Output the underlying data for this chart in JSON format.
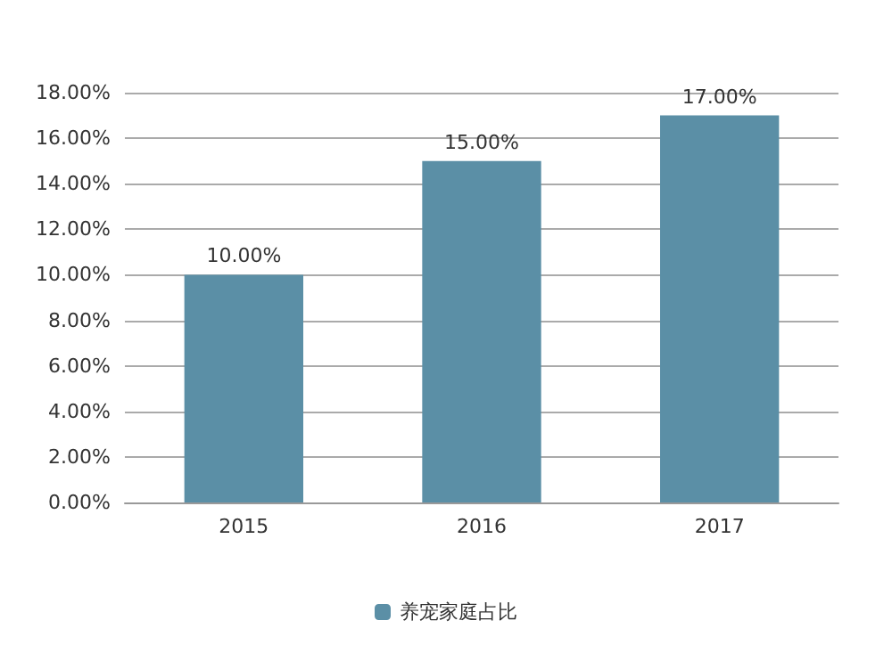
{
  "chart_data": {
    "type": "bar",
    "categories": [
      "2015",
      "2016",
      "2017"
    ],
    "series": [
      {
        "name": "养宠家庭占比",
        "color": "#5b8fa6",
        "values": [
          10,
          15,
          17
        ],
        "value_labels": [
          "10.00%",
          "15.00%",
          "17.00%"
        ]
      }
    ],
    "ylim": [
      0,
      18
    ],
    "yticks": [
      {
        "value": 0,
        "label": "0.00%"
      },
      {
        "value": 2,
        "label": "2.00%"
      },
      {
        "value": 4,
        "label": "4.00%"
      },
      {
        "value": 6,
        "label": "6.00%"
      },
      {
        "value": 8,
        "label": "8.00%"
      },
      {
        "value": 10,
        "label": "10.00%"
      },
      {
        "value": 12,
        "label": "12.00%"
      },
      {
        "value": 14,
        "label": "14.00%"
      },
      {
        "value": 16,
        "label": "16.00%"
      },
      {
        "value": 18,
        "label": "18.00%"
      }
    ],
    "grid": "y",
    "legend": "bottom"
  }
}
